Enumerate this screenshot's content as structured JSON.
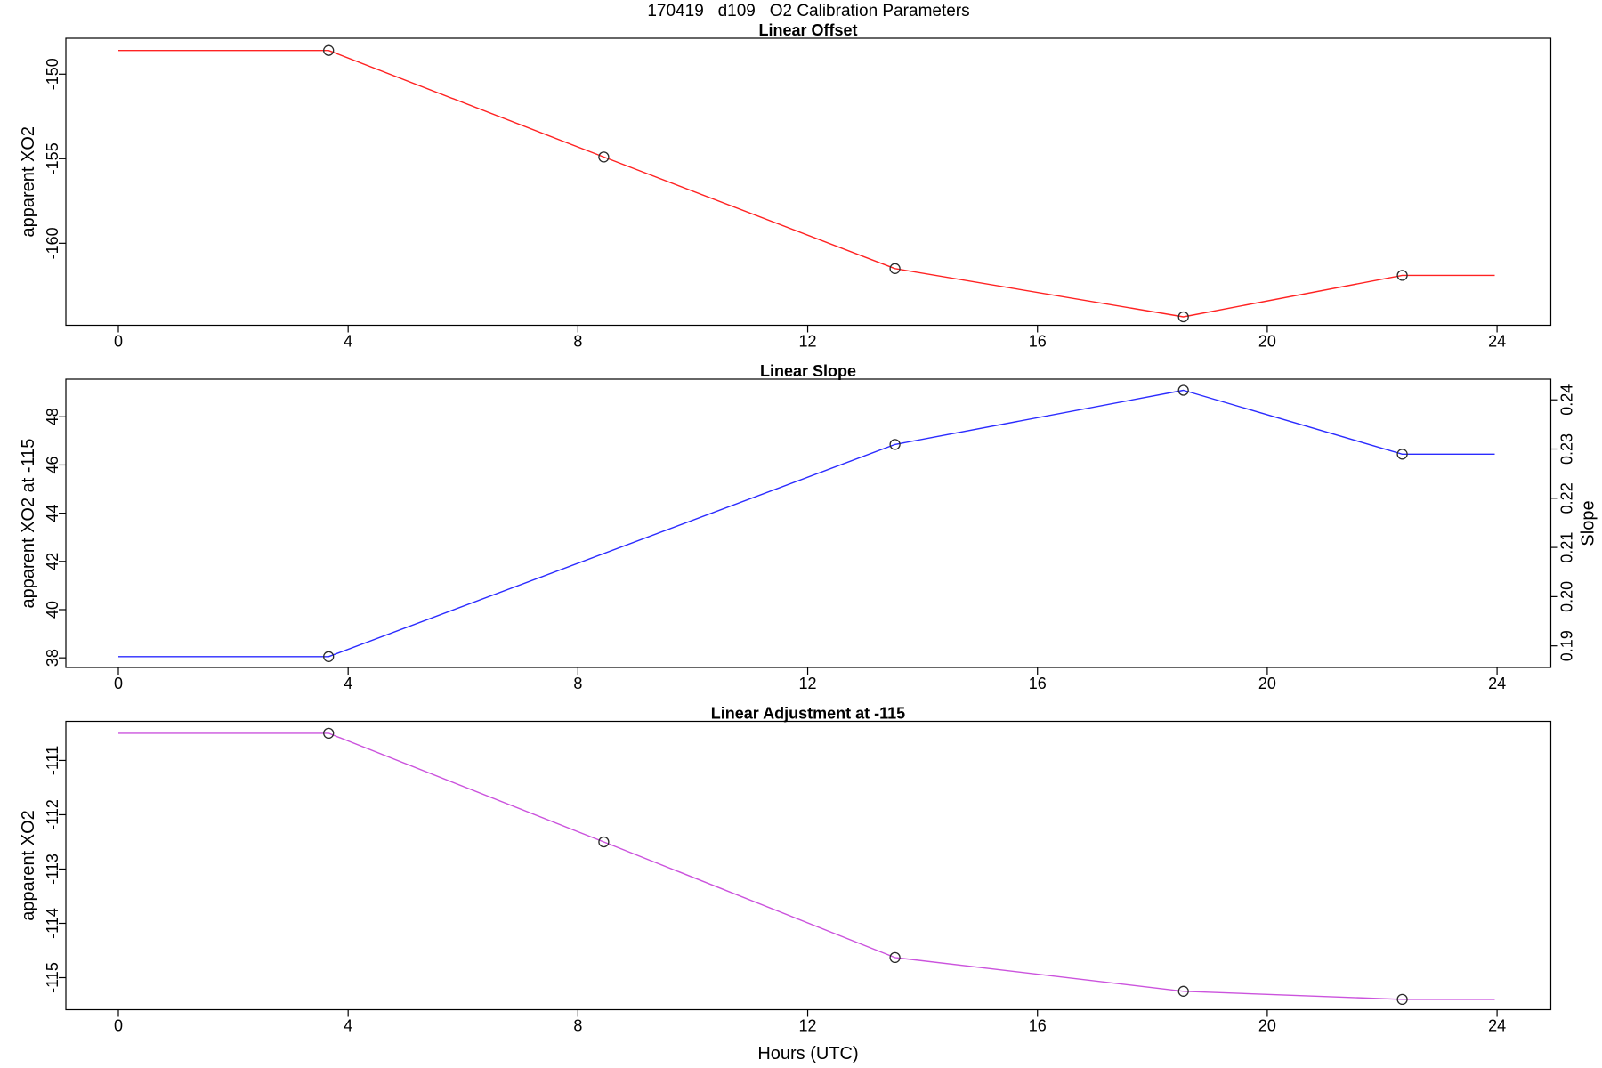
{
  "main_title": "170419   d109   O2 Calibration Parameters",
  "xlabel": "Hours (UTC)",
  "axis_color": "#000000",
  "marker_color": "#2a2a2a",
  "x_ticks": {
    "values": [
      0,
      4,
      8,
      12,
      16,
      20,
      24
    ],
    "labels": [
      "0",
      "4",
      "8",
      "12",
      "16",
      "20",
      "24"
    ]
  },
  "chart_data": [
    {
      "type": "line",
      "title": "Linear Offset",
      "ylabel": "apparent XO2",
      "color": "#ff2222",
      "x": [
        0,
        3.66,
        8.45,
        13.52,
        18.54,
        22.35,
        23.96
      ],
      "values": [
        -148.6,
        -148.6,
        -154.9,
        -161.5,
        -164.35,
        -161.9,
        -161.9
      ],
      "markers": [
        false,
        true,
        true,
        true,
        true,
        true,
        false
      ],
      "yticks": {
        "values": [
          -160,
          -155,
          -150
        ],
        "labels": [
          "-160",
          "-155",
          "-150"
        ]
      },
      "ylim": [
        -164.85,
        -147.88
      ],
      "xlim": [
        -0.914,
        24.936
      ],
      "grid": false
    },
    {
      "type": "line",
      "title": "Linear Slope",
      "ylabel": "apparent XO2 at -115",
      "ylabel_right": "Slope",
      "color": "#2b2bff",
      "x": [
        0,
        3.66,
        13.52,
        18.54,
        22.35,
        23.96
      ],
      "values": [
        38.05,
        38.05,
        46.85,
        49.1,
        46.45,
        46.45
      ],
      "slope_values": [
        0.188,
        0.188,
        0.231,
        0.242,
        0.229,
        0.229
      ],
      "markers": [
        false,
        true,
        true,
        true,
        true,
        false
      ],
      "yticks": {
        "values": [
          38,
          40,
          42,
          44,
          46,
          48
        ],
        "labels": [
          "38",
          "40",
          "42",
          "44",
          "46",
          "48"
        ]
      },
      "yticks_right": {
        "values": [
          0.19,
          0.2,
          0.21,
          0.22,
          0.23,
          0.24
        ],
        "labels": [
          "0.19",
          "0.20",
          "0.21",
          "0.22",
          "0.23",
          "0.24"
        ]
      },
      "ylim": [
        37.6,
        49.56
      ],
      "ylim_right": [
        0.1856,
        0.2442
      ],
      "xlim": [
        -0.914,
        24.936
      ],
      "grid": false
    },
    {
      "type": "line",
      "title": "Linear Adjustment at -115",
      "ylabel": "apparent XO2",
      "color": "#cb53dd",
      "x": [
        0,
        3.66,
        8.45,
        13.52,
        18.54,
        22.35,
        23.96
      ],
      "values": [
        -110.5,
        -110.5,
        -112.5,
        -114.63,
        -115.25,
        -115.4,
        -115.4
      ],
      "markers": [
        false,
        true,
        true,
        true,
        true,
        true,
        false
      ],
      "yticks": {
        "values": [
          -115,
          -114,
          -113,
          -112,
          -111
        ],
        "labels": [
          "-115",
          "-114",
          "-113",
          "-112",
          "-111"
        ]
      },
      "ylim": [
        -115.59,
        -110.28
      ],
      "xlim": [
        -0.914,
        24.936
      ],
      "grid": false
    }
  ]
}
